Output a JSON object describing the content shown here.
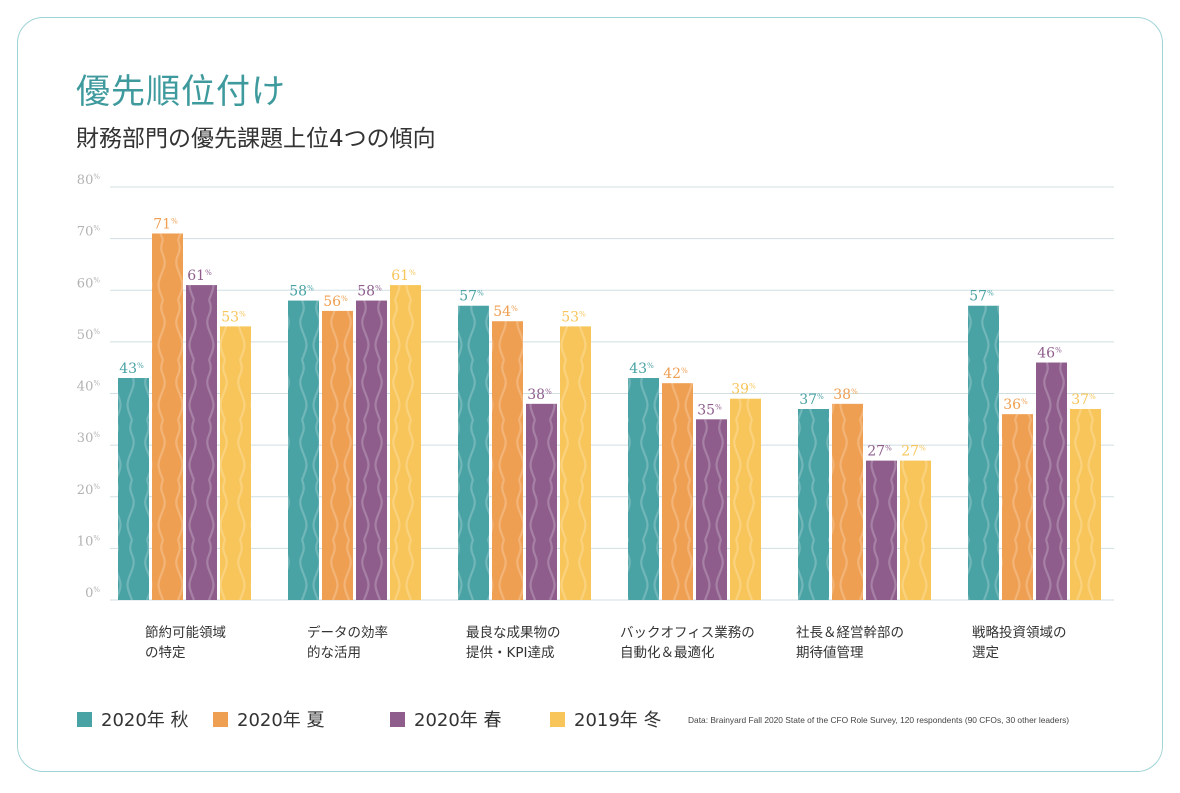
{
  "header": {
    "title": "優先順位付け",
    "subtitle": "財務部門の優先課題上位4つの傾向"
  },
  "colors": {
    "fall2020": "#49a2a4",
    "summer2020": "#ef9f52",
    "spring2020": "#8e5d8c",
    "winter2019": "#f8c55a",
    "grid": "#cfdfe3"
  },
  "legend": [
    {
      "label": "2020年 秋",
      "color": "#49a2a4"
    },
    {
      "label": "2020年 夏",
      "color": "#ef9f52"
    },
    {
      "label": "2020年 春",
      "color": "#8e5d8c"
    },
    {
      "label": "2019年 冬",
      "color": "#f8c55a"
    }
  ],
  "source": "Data: Brainyard Fall 2020 State of the CFO Role Survey, 120 respondents (90 CFOs, 30 other leaders)",
  "chart_data": {
    "type": "bar",
    "categories": [
      [
        "節約可能領域",
        "の特定"
      ],
      [
        "データの効率",
        "的な活用"
      ],
      [
        "最良な成果物の",
        "提供・KPI達成"
      ],
      [
        "バックオフィス業務の",
        "自動化＆最適化"
      ],
      [
        "社長＆経営幹部の",
        "期待値管理"
      ],
      [
        "戦略投資領域の",
        "選定"
      ]
    ],
    "series": [
      {
        "name": "2020年 秋",
        "values": [
          43,
          58,
          57,
          43,
          37,
          57
        ]
      },
      {
        "name": "2020年 夏",
        "values": [
          71,
          56,
          54,
          42,
          38,
          36
        ]
      },
      {
        "name": "2020年 春",
        "values": [
          61,
          58,
          38,
          35,
          27,
          46
        ]
      },
      {
        "name": "2019年 冬",
        "values": [
          53,
          61,
          53,
          39,
          27,
          37
        ]
      }
    ],
    "ylim": [
      0,
      80
    ],
    "yticks": [
      0,
      10,
      20,
      30,
      40,
      50,
      60,
      70,
      80
    ],
    "unit": "%",
    "grid": true,
    "legend_position": "bottom"
  }
}
